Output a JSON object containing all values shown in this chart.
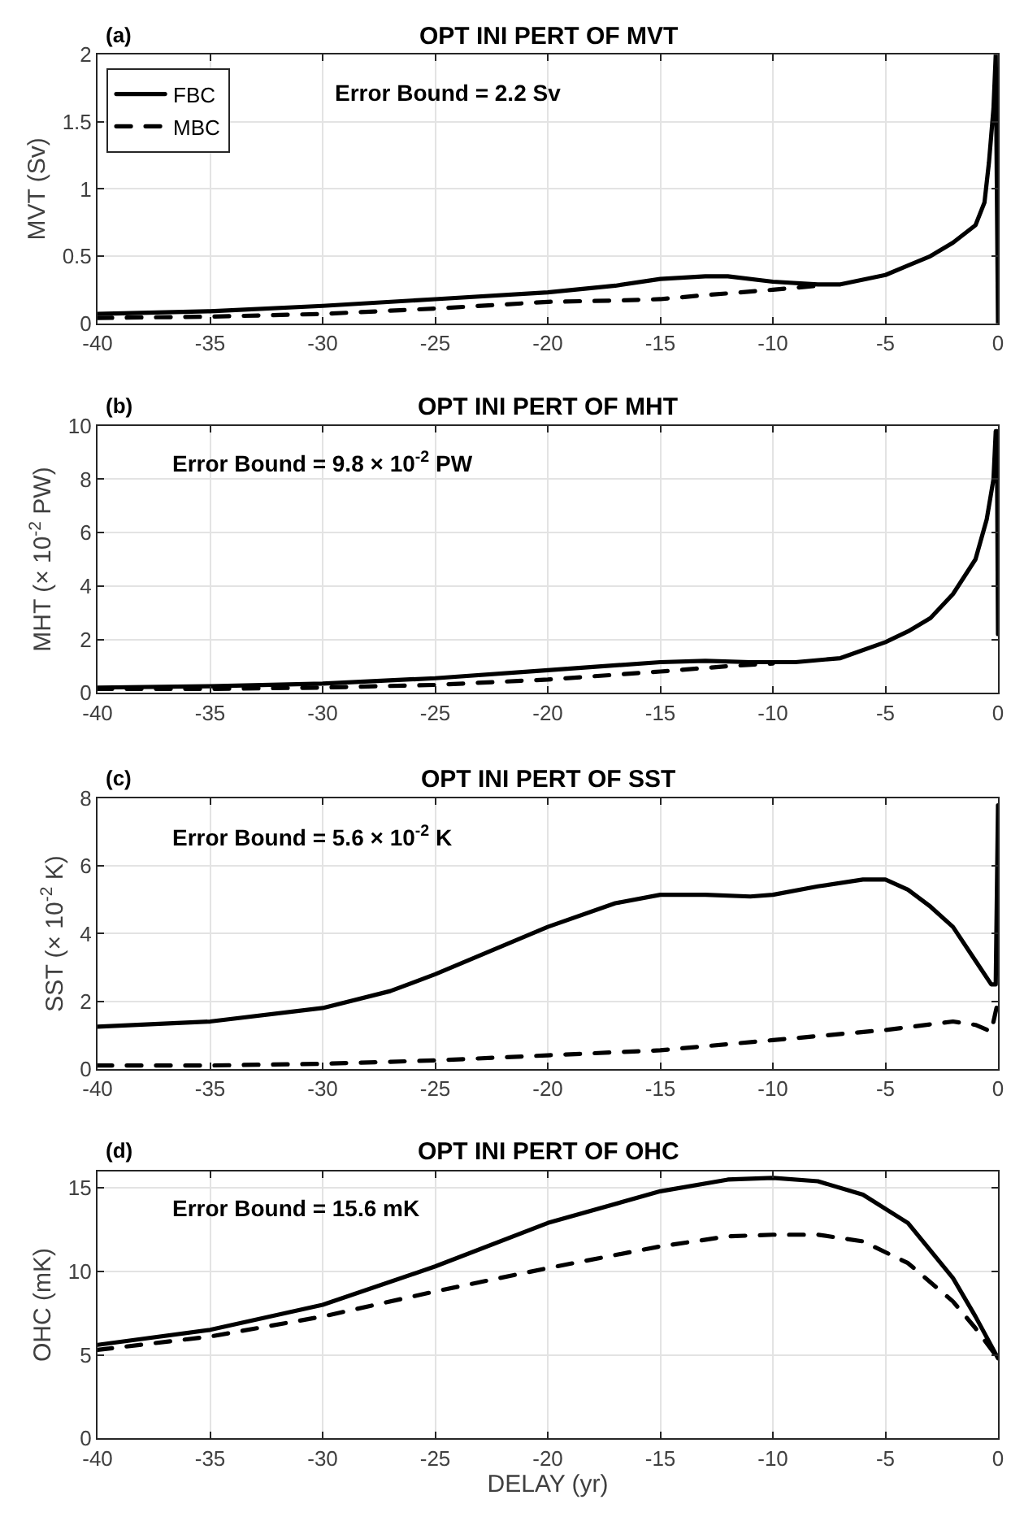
{
  "chart_data": [
    {
      "type": "line",
      "title": "OPT INI PERT OF MVT",
      "ylabel": "MVT (Sv)",
      "annotations": [
        "(a)",
        "Error Bound = 2.2 Sv"
      ],
      "xlim": [
        -40,
        0
      ],
      "xticks": [
        -40,
        -35,
        -30,
        -25,
        -20,
        -15,
        -10,
        -5,
        0
      ],
      "ylim": [
        0,
        2
      ],
      "yticks": [
        0,
        0.5,
        1,
        1.5,
        2
      ],
      "grid": true,
      "legend": "top left",
      "series": [
        {
          "name": "FBC",
          "color": "#000000",
          "line_style": "solid",
          "x": [
            -40,
            -35,
            -30,
            -25,
            -20,
            -17,
            -15,
            -13,
            -12,
            -10,
            -8,
            -7,
            -5,
            -4,
            -3,
            -2,
            -1,
            -0.6,
            -0.4,
            -0.2,
            -0.1,
            0
          ],
          "values": [
            0.07,
            0.09,
            0.13,
            0.18,
            0.23,
            0.28,
            0.33,
            0.35,
            0.35,
            0.31,
            0.29,
            0.29,
            0.36,
            0.43,
            0.5,
            0.6,
            0.73,
            0.9,
            1.2,
            1.6,
            2.0,
            0
          ]
        },
        {
          "name": "MBC",
          "color": "#000000",
          "line_style": "dashed",
          "x": [
            -40,
            -35,
            -30,
            -25,
            -20,
            -17,
            -15,
            -13,
            -10,
            -8
          ],
          "values": [
            0.04,
            0.05,
            0.07,
            0.11,
            0.16,
            0.17,
            0.18,
            0.21,
            0.25,
            0.28
          ]
        }
      ]
    },
    {
      "type": "line",
      "title": "OPT INI PERT OF MHT",
      "ylabel": "MHT (× 10$^{-2}$ PW)",
      "annotations": [
        "(b)",
        "Error Bound = 9.8 × 10$^{-2}$ PW"
      ],
      "xlim": [
        -40,
        0
      ],
      "xticks": [
        -40,
        -35,
        -30,
        -25,
        -20,
        -15,
        -10,
        -5,
        0
      ],
      "ylim": [
        0,
        10
      ],
      "yticks": [
        0,
        2,
        4,
        6,
        8,
        10
      ],
      "grid": true,
      "series": [
        {
          "color": "#000000",
          "line_style": "solid",
          "x": [
            -40,
            -35,
            -30,
            -25,
            -20,
            -15,
            -13,
            -11,
            -9,
            -7,
            -5,
            -4,
            -3,
            -2,
            -1,
            -0.5,
            -0.2,
            -0.1,
            -0.05,
            0
          ],
          "values": [
            0.2,
            0.25,
            0.35,
            0.55,
            0.85,
            1.15,
            1.2,
            1.15,
            1.15,
            1.3,
            1.9,
            2.3,
            2.8,
            3.7,
            5.0,
            6.5,
            8.0,
            9.8,
            9.8,
            2.2
          ]
        },
        {
          "color": "#000000",
          "line_style": "dashed",
          "x": [
            -40,
            -35,
            -30,
            -25,
            -20,
            -15,
            -12,
            -10
          ],
          "values": [
            0.15,
            0.15,
            0.2,
            0.3,
            0.5,
            0.8,
            1.0,
            1.1
          ]
        }
      ]
    },
    {
      "type": "line",
      "title": "OPT INI PERT OF SST",
      "ylabel": "SST (× 10$^{-2}$ K)",
      "annotations": [
        "(c)",
        "Error Bound = 5.6 × 10$^{-2}$ K"
      ],
      "xlim": [
        -40,
        0
      ],
      "xticks": [
        -40,
        -35,
        -30,
        -25,
        -20,
        -15,
        -10,
        -5,
        0
      ],
      "ylim": [
        0,
        8
      ],
      "yticks": [
        0,
        2,
        4,
        6,
        8
      ],
      "grid": true,
      "series": [
        {
          "color": "#000000",
          "line_style": "solid",
          "x": [
            -40,
            -35,
            -30,
            -27,
            -25,
            -20,
            -17,
            -15,
            -13,
            -11,
            -10,
            -8,
            -6,
            -5,
            -4,
            -3,
            -2,
            -1,
            -0.3,
            -0.1,
            0
          ],
          "values": [
            1.25,
            1.4,
            1.8,
            2.3,
            2.8,
            4.2,
            4.9,
            5.15,
            5.15,
            5.1,
            5.15,
            5.4,
            5.6,
            5.6,
            5.3,
            4.8,
            4.2,
            3.2,
            2.5,
            2.5,
            7.8
          ]
        },
        {
          "color": "#000000",
          "line_style": "dashed",
          "x": [
            -40,
            -35,
            -30,
            -25,
            -20,
            -15,
            -10,
            -5,
            -2,
            -1,
            -0.3,
            0
          ],
          "values": [
            0.1,
            0.1,
            0.15,
            0.25,
            0.4,
            0.55,
            0.85,
            1.15,
            1.4,
            1.3,
            1.1,
            2.0
          ]
        }
      ]
    },
    {
      "type": "line",
      "title": "OPT INI PERT OF OHC",
      "xlabel": "DELAY (yr)",
      "ylabel": "OHC (mK)",
      "annotations": [
        "(d)",
        "Error Bound = 15.6 mK"
      ],
      "xlim": [
        -40,
        0
      ],
      "xticks": [
        -40,
        -35,
        -30,
        -25,
        -20,
        -15,
        -10,
        -5,
        0
      ],
      "ylim": [
        0,
        16
      ],
      "yticks": [
        0,
        5,
        10,
        15
      ],
      "grid": true,
      "series": [
        {
          "color": "#000000",
          "line_style": "solid",
          "x": [
            -40,
            -35,
            -30,
            -25,
            -20,
            -15,
            -12,
            -10,
            -8,
            -6,
            -4,
            -2,
            -1,
            0
          ],
          "values": [
            5.6,
            6.5,
            8.0,
            10.3,
            12.9,
            14.8,
            15.5,
            15.6,
            15.4,
            14.6,
            12.9,
            9.6,
            7.3,
            4.8
          ]
        },
        {
          "color": "#000000",
          "line_style": "dashed",
          "x": [
            -40,
            -35,
            -30,
            -25,
            -20,
            -15,
            -12,
            -10,
            -8,
            -6,
            -4,
            -2,
            -1,
            0
          ],
          "values": [
            5.3,
            6.1,
            7.3,
            8.8,
            10.2,
            11.5,
            12.1,
            12.2,
            12.2,
            11.8,
            10.5,
            8.2,
            6.6,
            4.8
          ]
        }
      ]
    }
  ]
}
